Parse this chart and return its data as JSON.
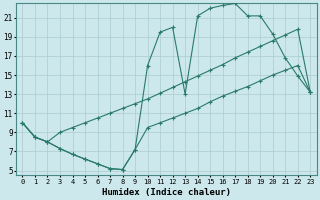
{
  "xlabel": "Humidex (Indice chaleur)",
  "bg_color": "#cce8ec",
  "grid_color": "#aacccc",
  "line_color": "#2a7a6a",
  "xlim": [
    -0.5,
    23.5
  ],
  "ylim": [
    4.5,
    22.5
  ],
  "xticks": [
    0,
    1,
    2,
    3,
    4,
    5,
    6,
    7,
    8,
    9,
    10,
    11,
    12,
    13,
    14,
    15,
    16,
    17,
    18,
    19,
    20,
    21,
    22,
    23
  ],
  "yticks": [
    5,
    7,
    9,
    11,
    13,
    15,
    17,
    19,
    21
  ],
  "curve1_x": [
    0,
    1,
    2,
    3,
    4,
    5,
    6,
    7,
    8,
    9,
    10,
    11,
    12,
    13,
    14,
    15,
    16,
    17,
    18,
    19,
    20,
    21,
    22,
    23
  ],
  "curve1_y": [
    10.0,
    8.5,
    8.0,
    7.3,
    6.7,
    6.2,
    5.7,
    5.2,
    5.1,
    7.2,
    16.0,
    19.5,
    20.0,
    13.0,
    21.2,
    22.0,
    22.3,
    22.5,
    21.2,
    21.2,
    19.3,
    16.8,
    14.9,
    13.2
  ],
  "curve2_x": [
    0,
    1,
    2,
    3,
    4,
    5,
    6,
    7,
    8,
    9,
    10,
    11,
    12,
    13,
    14,
    15,
    16,
    17,
    18,
    19,
    20,
    21,
    22,
    23
  ],
  "curve2_y": [
    10.0,
    8.5,
    8.0,
    9.0,
    9.5,
    10.0,
    10.5,
    11.0,
    11.5,
    12.0,
    12.5,
    13.1,
    13.7,
    14.3,
    14.9,
    15.5,
    16.1,
    16.8,
    17.4,
    18.0,
    18.6,
    19.2,
    19.8,
    13.2
  ],
  "curve3_x": [
    0,
    1,
    2,
    3,
    4,
    5,
    6,
    7,
    8,
    9,
    10,
    11,
    12,
    13,
    14,
    15,
    16,
    17,
    18,
    19,
    20,
    21,
    22,
    23
  ],
  "curve3_y": [
    10.0,
    8.5,
    8.0,
    7.3,
    6.7,
    6.2,
    5.7,
    5.2,
    5.1,
    7.2,
    9.5,
    10.0,
    10.5,
    11.0,
    11.5,
    12.2,
    12.8,
    13.3,
    13.8,
    14.4,
    15.0,
    15.5,
    16.0,
    13.2
  ]
}
